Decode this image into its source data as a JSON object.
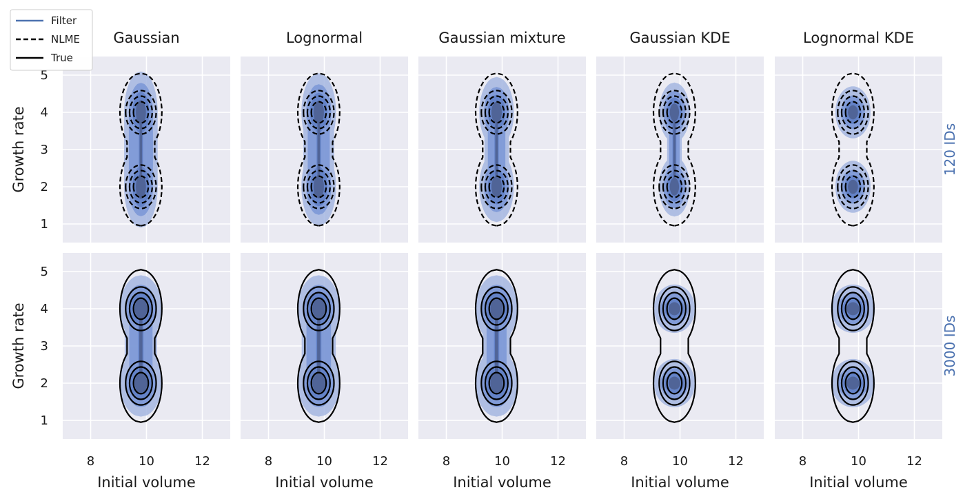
{
  "chart_data": {
    "type": "contour",
    "legend": {
      "placement": "top-left",
      "entries": [
        {
          "label": "Filter",
          "style": "filled-blue-kde",
          "color": "#4c72b0"
        },
        {
          "label": "NLME",
          "style": "dashed-black-contour",
          "color": "#000000"
        },
        {
          "label": "True",
          "style": "solid-black-contour",
          "color": "#000000"
        }
      ]
    },
    "columns": [
      "Gaussian",
      "Lognormal",
      "Gaussian mixture",
      "Gaussian KDE",
      "Lognormal KDE"
    ],
    "rows": [
      {
        "label": "120 IDs",
        "overlay": "NLME",
        "overlay_style": "dashed"
      },
      {
        "label": "3000 IDs",
        "overlay": "True",
        "overlay_style": "solid"
      }
    ],
    "xlabel": "Initial volume",
    "ylabel": "Growth rate",
    "xlim": [
      7,
      13
    ],
    "ylim": [
      0.5,
      5.5
    ],
    "xticks": [
      8,
      10,
      12
    ],
    "yticks": [
      1,
      2,
      3,
      4,
      5
    ],
    "grid": true,
    "modes": [
      {
        "x": 9.8,
        "y": 2.0
      },
      {
        "x": 9.8,
        "y": 4.0
      }
    ],
    "filter_spread": [
      [
        {
          "sx": 0.6,
          "sy": 1.1,
          "bridge": 1.0
        },
        {
          "sx": 0.62,
          "sy": 1.05,
          "bridge": 0.85
        },
        {
          "sx": 0.62,
          "sy": 0.95,
          "bridge": 0.6
        },
        {
          "sx": 0.55,
          "sy": 0.8,
          "bridge": 0.3
        },
        {
          "sx": 0.6,
          "sy": 0.7,
          "bridge": 0.0
        }
      ],
      [
        {
          "sx": 0.75,
          "sy": 0.9,
          "bridge": 0.7
        },
        {
          "sx": 0.75,
          "sy": 0.9,
          "bridge": 0.75
        },
        {
          "sx": 0.75,
          "sy": 0.9,
          "bridge": 0.55
        },
        {
          "sx": 0.7,
          "sy": 0.65,
          "bridge": 0.0
        },
        {
          "sx": 0.75,
          "sy": 0.65,
          "bridge": 0.0
        }
      ]
    ]
  }
}
